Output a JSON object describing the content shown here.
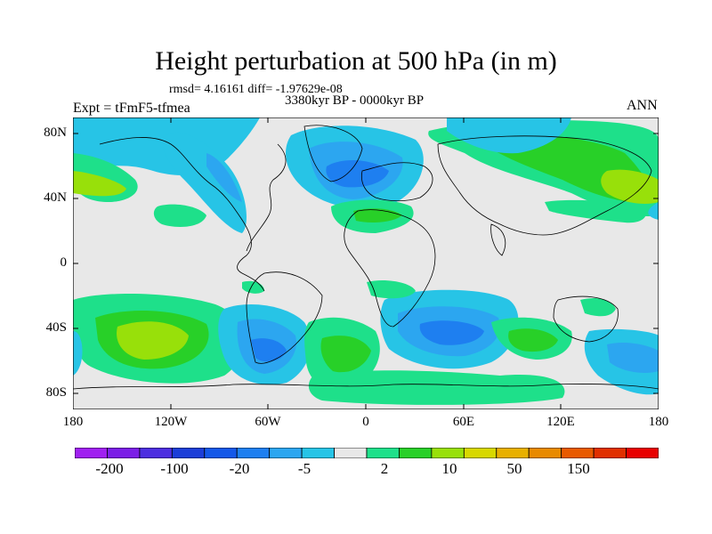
{
  "header": {
    "title": "Height perturbation at 500 hPa (in m)",
    "stats": "rmsd= 4.16161 diff= -1.97629e-08",
    "period": "3380kyr BP - 0000kyr BP",
    "experiment": "Expt = tFmF5-tfmea",
    "season": "ANN"
  },
  "map": {
    "lat_labels": [
      "80N",
      "40N",
      "0",
      "40S",
      "80S"
    ],
    "lon_labels": [
      "180",
      "120W",
      "60W",
      "0",
      "60E",
      "120E",
      "180"
    ]
  },
  "colorbar": {
    "colors": [
      "#a020f0",
      "#7b1ee6",
      "#4d2ee0",
      "#1c3ed8",
      "#1458e8",
      "#1e7ff0",
      "#2ca6f0",
      "#27c4e6",
      "#e8e8e8",
      "#1ee08a",
      "#28d028",
      "#98e00a",
      "#d8d800",
      "#e8b000",
      "#e88a00",
      "#e85a00",
      "#e03000",
      "#e80000"
    ],
    "labels": [
      "-200",
      "-100",
      "-20",
      "-5",
      "2",
      "10",
      "50",
      "150"
    ]
  }
}
